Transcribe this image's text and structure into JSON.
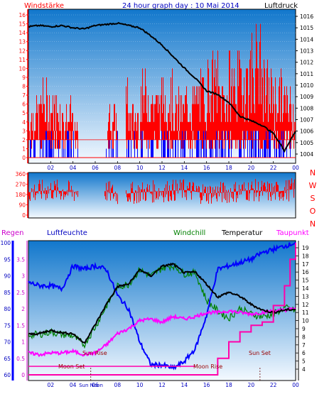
{
  "header": {
    "wind_label": "Windstärke",
    "title": "24 hour graph day : 10 Mai 2014",
    "pressure_label": "Luftdruck"
  },
  "colors": {
    "wind_red": "#ff0000",
    "wind_blue": "#0000ff",
    "pressure_black": "#000000",
    "humidity_blue": "#0000ff",
    "windchill_green": "#008000",
    "temperature_black": "#000000",
    "dewpoint_magenta": "#ff00ff",
    "rain_magenta": "#ff00aa",
    "axis_blue": "#0000c0"
  },
  "chart_data": [
    {
      "type": "bar",
      "name": "wind-speed",
      "x_ticks": [
        "02",
        "04",
        "06",
        "08",
        "10",
        "12",
        "14",
        "16",
        "18",
        "20",
        "22",
        "00"
      ],
      "xlim": [
        0,
        24
      ],
      "left_ticks": [
        "16",
        "15",
        "14",
        "13",
        "12",
        "11",
        "10",
        "9",
        "8",
        "7",
        "6",
        "5",
        "4",
        "3",
        "2",
        "1",
        "0"
      ],
      "left_ylim": [
        0,
        16
      ],
      "right_ticks": [
        "1016",
        "1015",
        "1014",
        "1013",
        "1012",
        "1011",
        "1010",
        "1009",
        "1008",
        "1007",
        "1006",
        "1005",
        "1004"
      ],
      "right_ylim": [
        1003.5,
        1016.5
      ],
      "series": [
        {
          "name": "Windstärke",
          "values_gust_hourly": [
            6,
            8,
            7,
            6,
            4,
            2,
            1,
            6,
            8,
            6,
            9,
            8,
            9,
            7,
            8,
            9,
            11,
            9,
            11,
            12,
            14,
            10,
            9,
            8
          ]
        },
        {
          "name": "Luftdruck",
          "x": [
            0,
            1,
            2,
            3,
            4,
            5,
            6,
            7,
            8,
            9,
            10,
            11,
            12,
            13,
            14,
            15,
            16,
            17,
            18,
            19,
            20,
            21,
            22,
            23,
            24
          ],
          "values": [
            1015.1,
            1015.2,
            1015.1,
            1015.2,
            1015.0,
            1014.9,
            1015.2,
            1015.3,
            1015.4,
            1015.2,
            1015.0,
            1014.3,
            1013.5,
            1012.5,
            1011.5,
            1010.6,
            1009.5,
            1009.2,
            1008.5,
            1007.3,
            1006.9,
            1006.5,
            1005.8,
            1004.3,
            1006.0
          ]
        }
      ]
    },
    {
      "type": "line",
      "name": "wind-direction",
      "x_ticks": [
        "02",
        "04",
        "06",
        "08",
        "10",
        "12",
        "14",
        "16",
        "18",
        "20",
        "22",
        "00"
      ],
      "ylim": [
        0,
        360
      ],
      "y_ticks": [
        "360",
        "270",
        "180",
        "90",
        "0"
      ],
      "right_labels": [
        "N",
        "W",
        "S",
        "O",
        "N"
      ],
      "series": [
        {
          "name": "direction",
          "x": [
            0,
            2,
            4,
            6,
            8,
            10,
            12,
            14,
            16,
            18,
            20,
            22,
            24
          ],
          "values": [
            200,
            220,
            200,
            230,
            180,
            200,
            210,
            220,
            190,
            200,
            220,
            200,
            230
          ]
        }
      ]
    },
    {
      "type": "line",
      "name": "climate",
      "labels": {
        "rain": "Regen",
        "humidity": "Luftfeuchte",
        "windchill": "Windchill",
        "temperature": "Temperatur",
        "dewpoint": "Taupunkt"
      },
      "annotations": {
        "sun_rise": "Sun Rise",
        "sun_set": "Sun Set",
        "moon_set": "Moon Set",
        "moon_rise": "Moon Rise",
        "sun_noon": "Sun Noon"
      },
      "x_ticks": [
        "02",
        "04",
        "06",
        "08",
        "10",
        "12",
        "14",
        "16",
        "18",
        "20",
        "22",
        "00"
      ],
      "rain_ticks": [
        "3.5",
        "3",
        "2.5",
        "2",
        "1.5",
        "1",
        "0.5",
        "0"
      ],
      "rain_ylim": [
        0,
        4
      ],
      "humidity_ticks": [
        "100",
        "95",
        "90",
        "85",
        "80",
        "75",
        "70",
        "65",
        "60"
      ],
      "humidity_ylim": [
        60,
        100
      ],
      "temp_ticks": [
        "19",
        "18",
        "17",
        "16",
        "15",
        "14",
        "13",
        "12",
        "11",
        "10",
        "9",
        "8",
        "7",
        "6",
        "5",
        "4"
      ],
      "temp_ylim": [
        3.5,
        19.5
      ],
      "series": [
        {
          "name": "Luftfeuchte",
          "x": [
            0,
            1,
            2,
            3,
            4,
            5,
            6,
            7,
            8,
            9,
            10,
            11,
            12,
            13,
            14,
            15,
            16,
            17,
            18,
            19,
            20,
            21,
            22,
            23,
            24
          ],
          "values": [
            88,
            87,
            87,
            86,
            93,
            92,
            93,
            92,
            84,
            80,
            70,
            63,
            63,
            62,
            64,
            68,
            78,
            92,
            93,
            94,
            95,
            97,
            98,
            99,
            100
          ]
        },
        {
          "name": "Windchill",
          "x": [
            0,
            1,
            2,
            3,
            4,
            5,
            6,
            7,
            8,
            9,
            10,
            11,
            12,
            13,
            14,
            15,
            16,
            17,
            18,
            19,
            20,
            21,
            22,
            23,
            24
          ],
          "values": [
            8.2,
            8.3,
            8.6,
            8.3,
            8.1,
            7.0,
            9.2,
            11.8,
            14.2,
            14.5,
            16.3,
            15.5,
            16.5,
            16.8,
            15.8,
            15.9,
            12.5,
            11.2,
            10.3,
            11.5,
            10.8,
            10.5,
            10.8,
            11.6,
            11.2
          ]
        },
        {
          "name": "Temperatur",
          "x": [
            0,
            1,
            2,
            3,
            4,
            5,
            6,
            7,
            8,
            9,
            10,
            11,
            12,
            13,
            14,
            15,
            16,
            17,
            18,
            19,
            20,
            21,
            22,
            23,
            24
          ],
          "values": [
            8.3,
            8.4,
            8.8,
            8.5,
            8.4,
            7.2,
            9.5,
            12.0,
            14.2,
            14.5,
            16.3,
            15.5,
            16.7,
            17.0,
            15.9,
            16.0,
            14.5,
            12.9,
            13.5,
            13.0,
            12.0,
            11.3,
            11.0,
            11.3,
            11.4
          ]
        },
        {
          "name": "Taupunkt",
          "x": [
            0,
            1,
            2,
            3,
            4,
            5,
            6,
            7,
            8,
            9,
            10,
            11,
            12,
            13,
            14,
            15,
            16,
            17,
            18,
            19,
            20,
            21,
            22,
            23,
            24
          ],
          "values": [
            6.0,
            5.8,
            6.0,
            6.0,
            6.2,
            5.8,
            6.0,
            7.0,
            8.4,
            9.0,
            10.0,
            10.2,
            9.8,
            10.5,
            10.2,
            10.5,
            11.0,
            11.0,
            11.2,
            11.0,
            10.8,
            11.0,
            11.2,
            11.3,
            11.5
          ]
        },
        {
          "name": "Regen",
          "x": [
            0,
            16,
            17,
            18,
            19,
            20,
            21,
            22,
            23,
            23.5,
            24
          ],
          "values": [
            0,
            0,
            0.5,
            1.0,
            1.3,
            1.5,
            1.6,
            2.1,
            2.7,
            3.5,
            4.0
          ]
        }
      ]
    }
  ]
}
